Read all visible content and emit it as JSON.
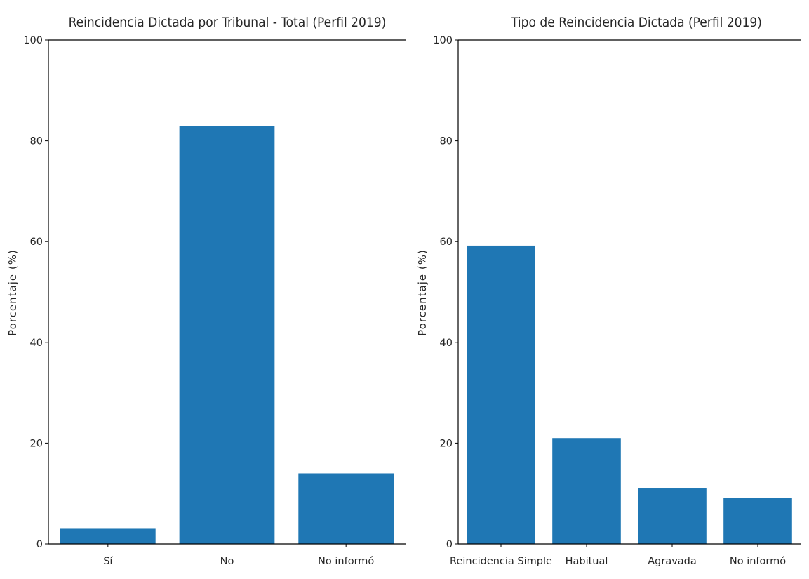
{
  "colors": {
    "bar": "#1f77b4",
    "axis": "#000000",
    "text": "#262626"
  },
  "chart_data": [
    {
      "type": "bar",
      "title": "Reincidencia Dictada por Tribunal - Total (Perfil 2019)",
      "xlabel": "",
      "ylabel": "Porcentaje (%)",
      "categories": [
        "Sí",
        "No",
        "No informó"
      ],
      "values": [
        3,
        83,
        14
      ],
      "ylim": [
        0,
        100
      ],
      "yticks": [
        "0",
        "20",
        "40",
        "60",
        "80",
        "100"
      ],
      "grid": false
    },
    {
      "type": "bar",
      "title": "Tipo de Reincidencia Dictada (Perfil 2019)",
      "xlabel": "",
      "ylabel": "Porcentaje (%)",
      "categories": [
        "Reincidencia Simple",
        "Habitual",
        "Agravada",
        "No informó"
      ],
      "values": [
        59.2,
        21,
        11,
        9.1
      ],
      "ylim": [
        0,
        100
      ],
      "yticks": [
        "0",
        "20",
        "40",
        "60",
        "80",
        "100"
      ],
      "grid": false
    }
  ]
}
